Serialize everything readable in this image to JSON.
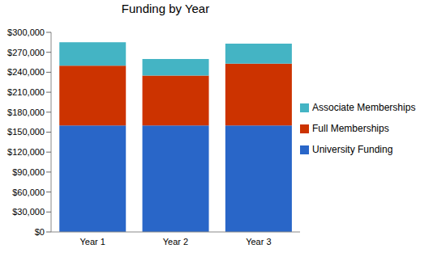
{
  "chart_data": {
    "type": "bar",
    "title": "Funding by Year",
    "categories": [
      "Year 1",
      "Year 2",
      "Year 3"
    ],
    "stacked": true,
    "grid": false,
    "legend": "right",
    "series": [
      {
        "name": "University Funding",
        "color": "#2966c8",
        "values": [
          160000,
          160000,
          160000
        ]
      },
      {
        "name": "Full Memberships",
        "color": "#cc3300",
        "values": [
          90000,
          75000,
          93000
        ]
      },
      {
        "name": "Associate Memberships",
        "color": "#44b4c4",
        "values": [
          35000,
          25000,
          30000
        ]
      }
    ],
    "ylim": [
      0,
      300000
    ],
    "yticks": [
      {
        "value": 0,
        "label": "$0"
      },
      {
        "value": 30000,
        "label": "$30,000"
      },
      {
        "value": 60000,
        "label": "$60,000"
      },
      {
        "value": 90000,
        "label": "$90,000"
      },
      {
        "value": 120000,
        "label": "$120,000"
      },
      {
        "value": 150000,
        "label": "$150,000"
      },
      {
        "value": 180000,
        "label": "$180,000"
      },
      {
        "value": 210000,
        "label": "$210,000"
      },
      {
        "value": 240000,
        "label": "$240,000"
      },
      {
        "value": 270000,
        "label": "$270,000"
      },
      {
        "value": 300000,
        "label": "$300,000"
      }
    ]
  }
}
